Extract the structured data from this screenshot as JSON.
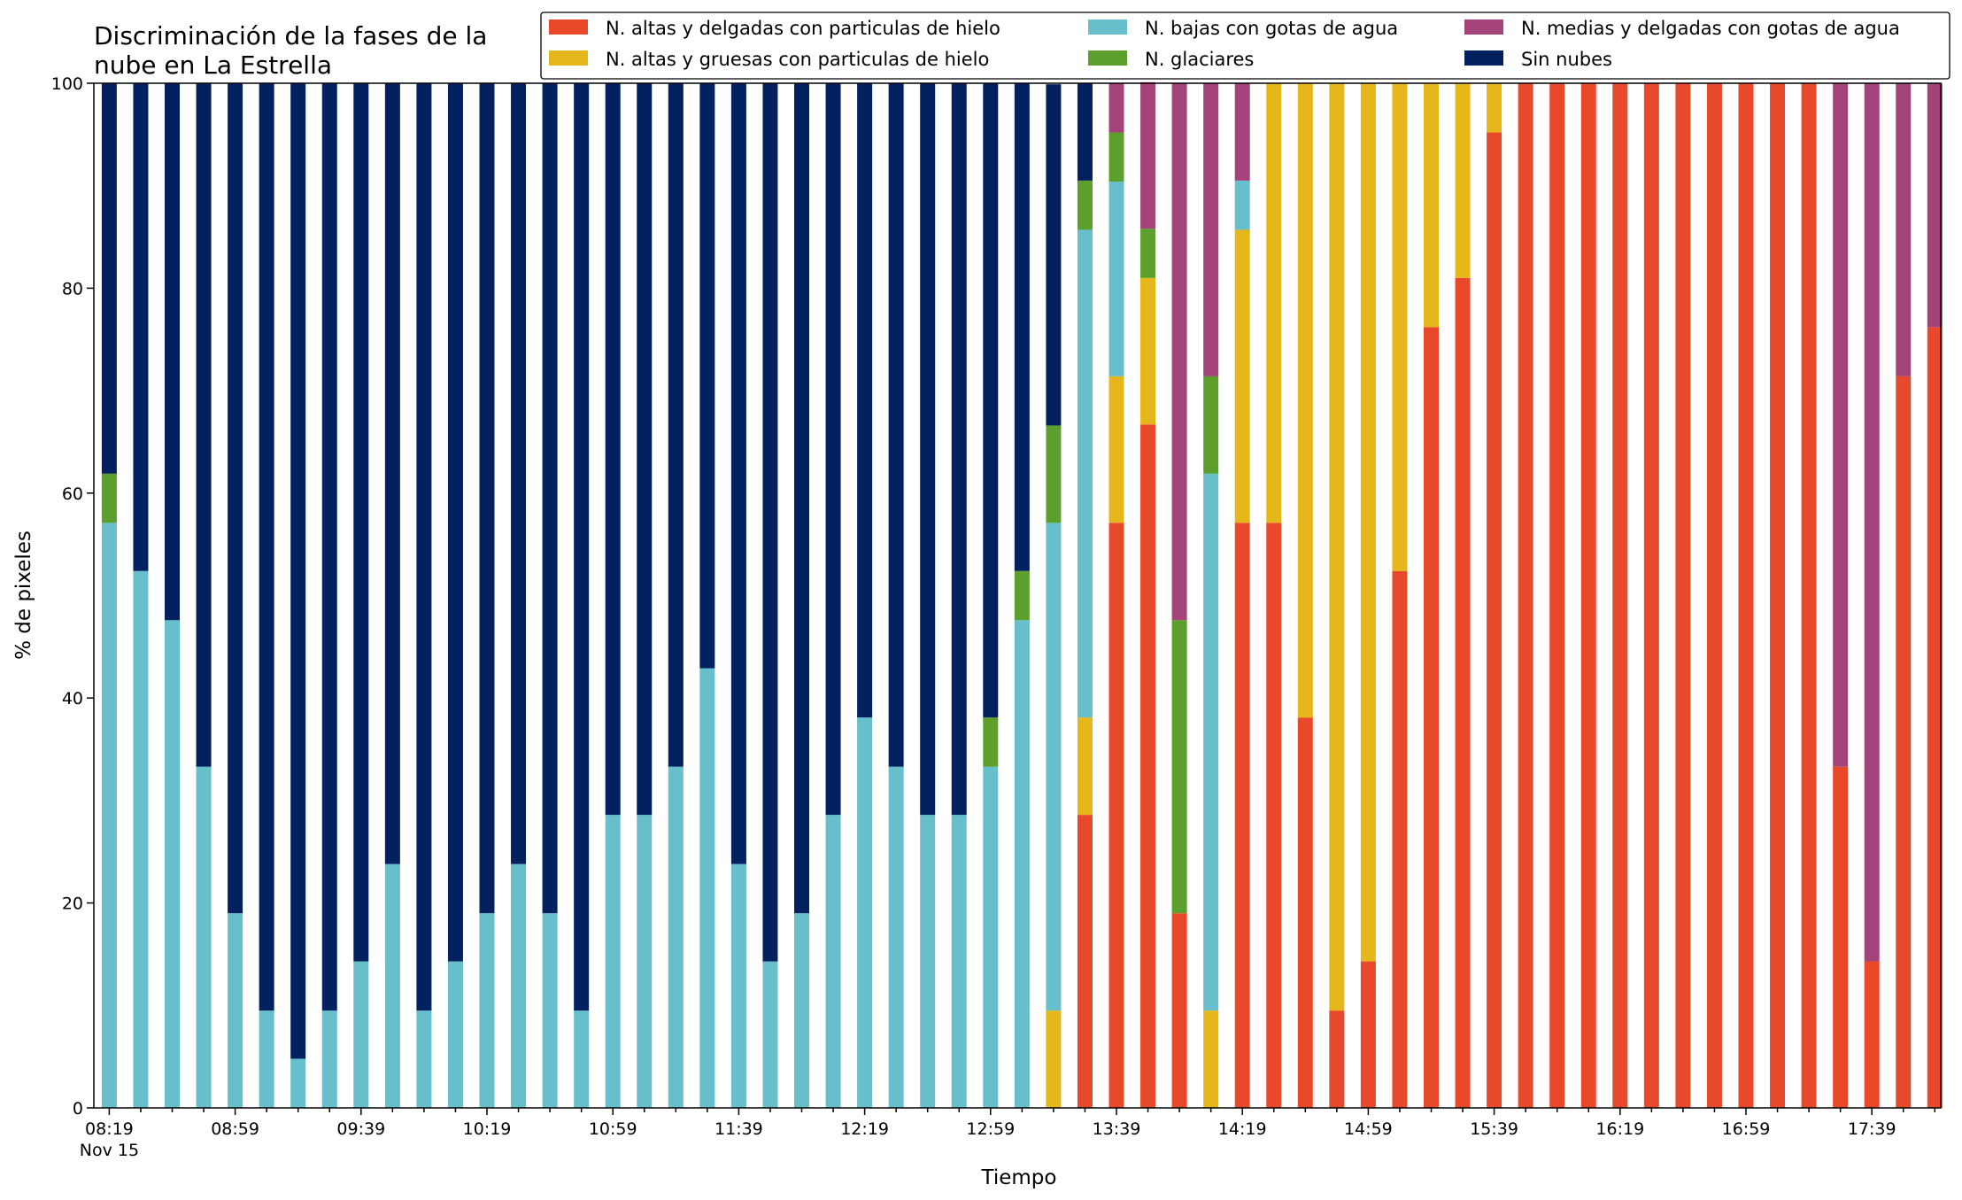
{
  "chart_data": {
    "type": "bar",
    "stacked": true,
    "title": "Discriminación de la fases de la nube en La Estrella",
    "title_lines": [
      "Discriminación de la fases de la",
      "nube en La Estrella"
    ],
    "xlabel": "Tiempo",
    "ylabel": "% de pixeles",
    "ylim": [
      0,
      100
    ],
    "yticks": [
      0,
      20,
      40,
      60,
      80,
      100
    ],
    "x_start": "08:19",
    "x_interval_minutes": 10,
    "x_tick_labels": [
      "08:19",
      "08:59",
      "09:39",
      "10:19",
      "10:59",
      "11:39",
      "12:19",
      "12:59",
      "13:39",
      "14:19",
      "14:59",
      "15:39",
      "16:19",
      "16:59",
      "17:39"
    ],
    "x_date_label": "Nov 15",
    "grid": false,
    "legend_position": "top-right",
    "legend_columns": 3,
    "legend": [
      {
        "key": "altas_delgadas",
        "label": "N. altas y delgadas con particulas de hielo",
        "color": "#e9492b"
      },
      {
        "key": "altas_gruesas",
        "label": "N. altas y gruesas con particulas de hielo",
        "color": "#e6b71b"
      },
      {
        "key": "bajas",
        "label": "N. bajas con gotas de agua",
        "color": "#66bfca"
      },
      {
        "key": "glaciares",
        "label": "N. glaciares",
        "color": "#5c9f2c"
      },
      {
        "key": "medias",
        "label": "N. medias y delgadas con gotas de agua",
        "color": "#a4437a"
      },
      {
        "key": "sin_nubes",
        "label": "Sin nubes",
        "color": "#03205f"
      }
    ],
    "series": [
      {
        "name": "N. altas y delgadas con particulas de hielo",
        "color": "#e9492b",
        "values": [
          0,
          0,
          0,
          0,
          0,
          0,
          0,
          0,
          0,
          0,
          0,
          0,
          0,
          0,
          0,
          0,
          0,
          0,
          0,
          0,
          0,
          0,
          0,
          0,
          0,
          0,
          0,
          0,
          0,
          0,
          0,
          28.6,
          57.1,
          66.7,
          19,
          0,
          57.1,
          57.1,
          38.1,
          9.5,
          14.3,
          52.4,
          76.2,
          81,
          95.2,
          100,
          100,
          100,
          100,
          100,
          100,
          100,
          100,
          100,
          100,
          33.3,
          14.3,
          71.4,
          76.2
        ]
      },
      {
        "name": "N. altas y gruesas con particulas de hielo",
        "color": "#e6b71b",
        "values": [
          0,
          0,
          0,
          0,
          0,
          0,
          0,
          0,
          0,
          0,
          0,
          0,
          0,
          0,
          0,
          0,
          0,
          0,
          0,
          0,
          0,
          0,
          0,
          0,
          0,
          0,
          0,
          0,
          0,
          0,
          9.5,
          9.5,
          14.3,
          14.3,
          0,
          9.5,
          28.6,
          42.9,
          61.9,
          90.5,
          85.7,
          47.6,
          23.8,
          19,
          4.8,
          0,
          0,
          0,
          0,
          0,
          0,
          0,
          0,
          0,
          0,
          0,
          0,
          0,
          0
        ]
      },
      {
        "name": "N. bajas con gotas de agua",
        "color": "#66bfca",
        "values": [
          57.1,
          52.4,
          47.6,
          33.3,
          19,
          9.5,
          4.8,
          9.5,
          14.3,
          23.8,
          9.5,
          14.3,
          19,
          23.8,
          19,
          9.5,
          28.6,
          28.6,
          33.3,
          42.9,
          23.8,
          14.3,
          19,
          28.6,
          38.1,
          33.3,
          28.6,
          28.6,
          33.3,
          47.6,
          47.6,
          47.6,
          19,
          0,
          0,
          52.4,
          4.8,
          0,
          0,
          0,
          0,
          0,
          0,
          0,
          0,
          0,
          0,
          0,
          0,
          0,
          0,
          0,
          0,
          0,
          0,
          0,
          0,
          0,
          0
        ]
      },
      {
        "name": "N. glaciares",
        "color": "#5c9f2c",
        "values": [
          4.8,
          0,
          0,
          0,
          0,
          0,
          0,
          0,
          0,
          0,
          0,
          0,
          0,
          0,
          0,
          0,
          0,
          0,
          0,
          0,
          0,
          0,
          0,
          0,
          0,
          0,
          0,
          0,
          4.8,
          4.8,
          9.5,
          4.8,
          4.8,
          4.8,
          28.6,
          9.5,
          0,
          0,
          0,
          0,
          0,
          0,
          0,
          0,
          0,
          0,
          0,
          0,
          0,
          0,
          0,
          0,
          0,
          0,
          0,
          0,
          0,
          0,
          0
        ]
      },
      {
        "name": "N. medias y delgadas con gotas de agua",
        "color": "#a4437a",
        "values": [
          0,
          0,
          0,
          0,
          0,
          0,
          0,
          0,
          0,
          0,
          0,
          0,
          0,
          0,
          0,
          0,
          0,
          0,
          0,
          0,
          0,
          0,
          0,
          0,
          0,
          0,
          0,
          0,
          0,
          0,
          0,
          0,
          4.8,
          14.3,
          52.4,
          28.6,
          9.5,
          0,
          0,
          0,
          0,
          0,
          0,
          0,
          0,
          0,
          0,
          0,
          0,
          0,
          0,
          0,
          0,
          0,
          0,
          66.7,
          85.7,
          28.6,
          23.8
        ]
      },
      {
        "name": "Sin nubes",
        "color": "#03205f",
        "values": [
          38.1,
          47.6,
          52.4,
          66.7,
          81,
          90.5,
          95.2,
          90.5,
          85.7,
          76.2,
          90.5,
          85.7,
          81,
          76.2,
          81,
          90.5,
          71.4,
          71.4,
          66.7,
          57.1,
          76.2,
          85.7,
          81,
          71.4,
          61.9,
          66.7,
          71.4,
          71.4,
          61.9,
          47.6,
          33.3,
          9.5,
          0,
          0,
          0,
          0,
          0,
          0,
          0,
          0,
          0,
          0,
          0,
          0,
          0,
          0,
          0,
          0,
          0,
          0,
          0,
          0,
          0,
          0,
          0,
          0,
          0,
          0,
          0
        ]
      }
    ]
  }
}
